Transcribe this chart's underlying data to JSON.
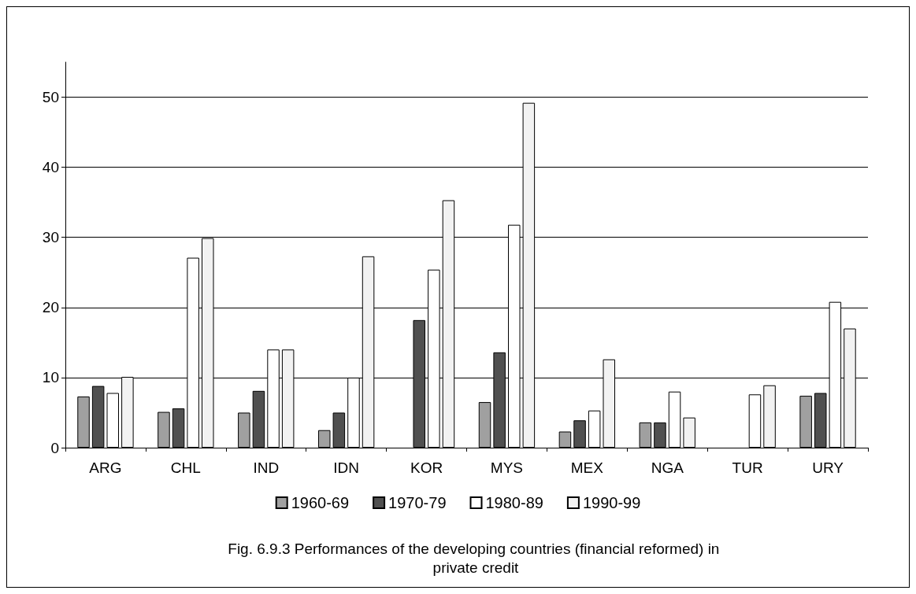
{
  "chart_data": {
    "type": "bar",
    "title": "Fig. 6.9.3 Performances of the developing countries (financial reformed) in private credit",
    "categories": [
      "ARG",
      "CHL",
      "IND",
      "IDN",
      "KOR",
      "MYS",
      "MEX",
      "NGA",
      "TUR",
      "URY"
    ],
    "series": [
      {
        "name": "1960-69",
        "color": "#a0a0a0",
        "values": [
          7.3,
          5.1,
          5.0,
          2.5,
          null,
          6.5,
          2.3,
          3.6,
          null,
          7.4
        ]
      },
      {
        "name": "1970-79",
        "color": "#505050",
        "values": [
          8.8,
          5.6,
          8.1,
          5.0,
          18.2,
          13.6,
          3.9,
          3.6,
          null,
          7.8
        ]
      },
      {
        "name": "1980-89",
        "color": "#ffffff",
        "values": [
          7.8,
          27.1,
          14.0,
          10.0,
          25.4,
          31.8,
          5.3,
          8.0,
          7.6,
          20.8
        ]
      },
      {
        "name": "1990-99",
        "color": "#f2f2f2",
        "values": [
          10.1,
          29.9,
          14.0,
          27.3,
          35.3,
          49.2,
          12.6,
          4.3,
          8.9,
          17.0
        ]
      }
    ],
    "ylim": [
      0,
      55
    ],
    "yticks": [
      0,
      10,
      20,
      30,
      40,
      50
    ],
    "grid": "y",
    "legend": "bottom"
  }
}
